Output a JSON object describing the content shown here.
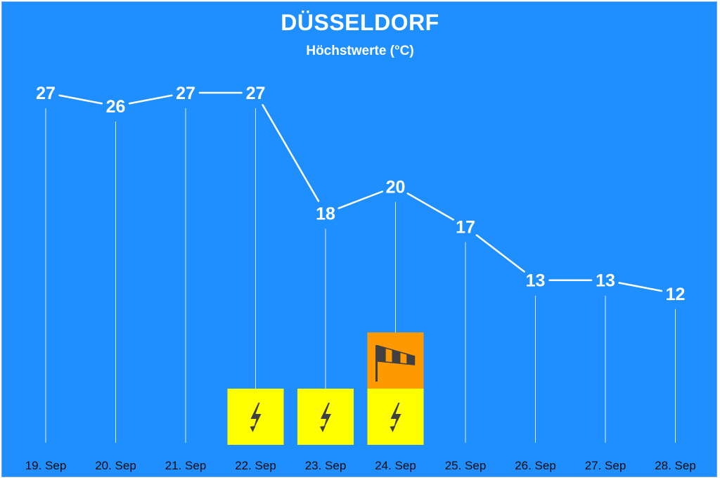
{
  "chart_data": {
    "type": "line",
    "title": "DÜSSELDORF",
    "subtitle": "Höchstwerte (°C)",
    "categories": [
      "19. Sep",
      "20. Sep",
      "21. Sep",
      "22. Sep",
      "23. Sep",
      "24. Sep",
      "25. Sep",
      "26. Sep",
      "27. Sep",
      "28. Sep"
    ],
    "series": [
      {
        "values": [
          27,
          26,
          27,
          27,
          18,
          20,
          17,
          13,
          13,
          12
        ]
      }
    ],
    "ylim": [
      8,
      30
    ],
    "grid": false,
    "warnings": [
      {
        "date": "22. Sep",
        "icons": [
          "lightning-icon"
        ]
      },
      {
        "date": "23. Sep",
        "icons": [
          "lightning-icon"
        ]
      },
      {
        "date": "24. Sep",
        "icons": [
          "lightning-icon",
          "windsock-icon"
        ]
      }
    ],
    "icon_colors": {
      "lightning-icon": "#ffff00",
      "windsock-icon": "#ff9900"
    }
  },
  "colors": {
    "background": "#1f8fff",
    "line": "#ffffff",
    "text": "#ffffff",
    "lightning_bg": "#ffff00",
    "wind_bg": "#ff9900",
    "icon": "#404040"
  }
}
